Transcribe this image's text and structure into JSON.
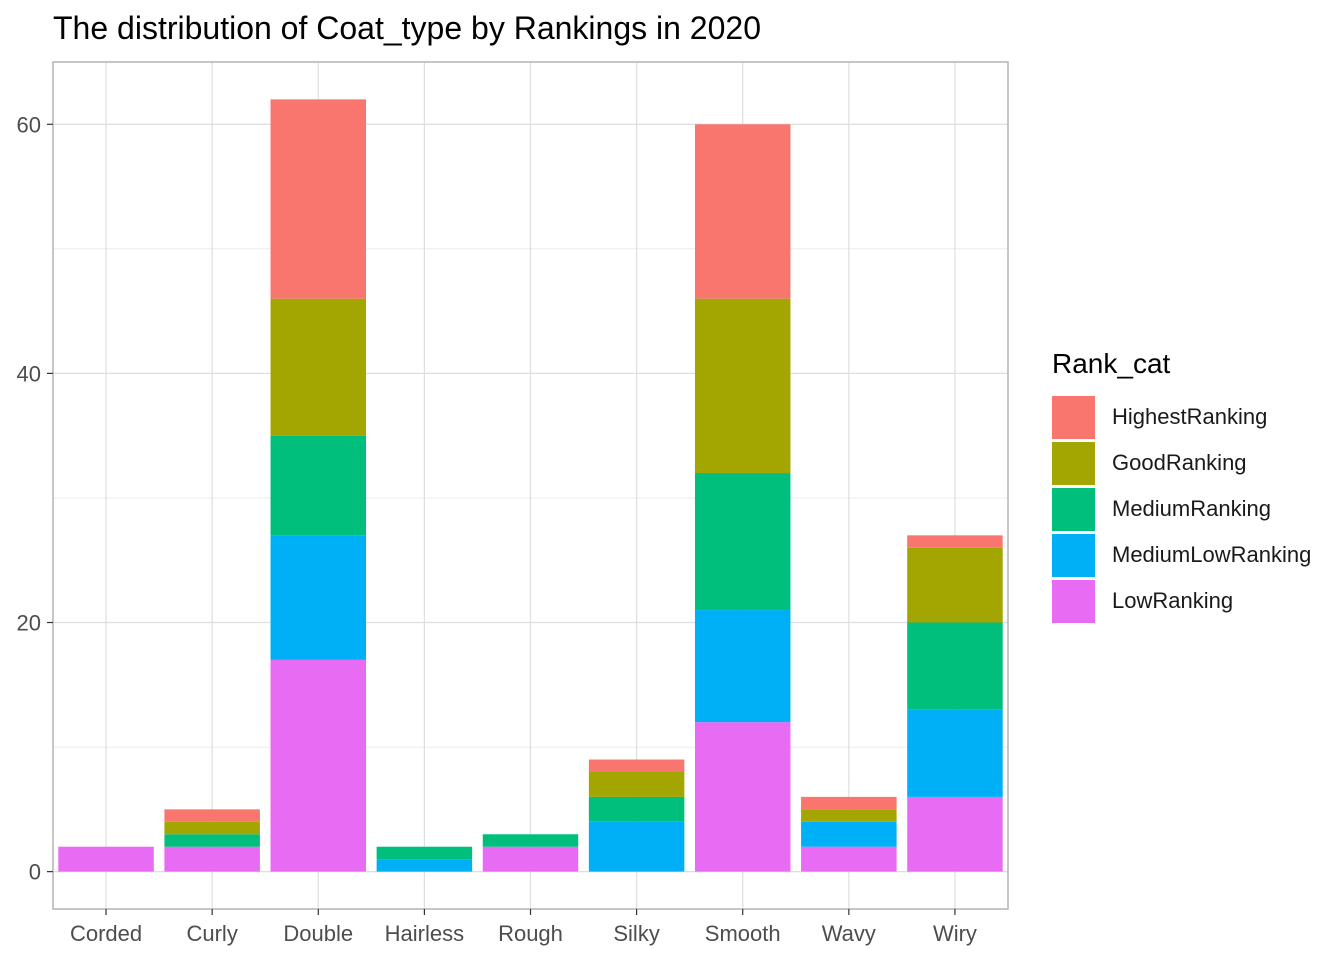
{
  "chart_data": {
    "type": "bar",
    "stacked": true,
    "title": "The distribution of Coat_type by Rankings in 2020",
    "xlabel": "",
    "ylabel": "",
    "categories": [
      "Corded",
      "Curly",
      "Double",
      "Hairless",
      "Rough",
      "Silky",
      "Smooth",
      "Wavy",
      "Wiry"
    ],
    "ylim": [
      -3,
      65
    ],
    "yticks": [
      0,
      20,
      40,
      60
    ],
    "grid": true,
    "legend": {
      "title": "Rank_cat",
      "position": "right"
    },
    "series": [
      {
        "name": "LowRanking",
        "color": "#E76BF3",
        "values": [
          2,
          2,
          17,
          0,
          2,
          0,
          12,
          2,
          6
        ]
      },
      {
        "name": "MediumLowRanking",
        "color": "#00B0F6",
        "values": [
          0,
          0,
          10,
          1,
          0,
          4,
          9,
          2,
          7
        ]
      },
      {
        "name": "MediumRanking",
        "color": "#00BF7D",
        "values": [
          0,
          1,
          8,
          1,
          1,
          2,
          11,
          0,
          7
        ]
      },
      {
        "name": "GoodRanking",
        "color": "#A3A500",
        "values": [
          0,
          1,
          11,
          0,
          0,
          2,
          14,
          1,
          6
        ]
      },
      {
        "name": "HighestRanking",
        "color": "#F8766D",
        "values": [
          0,
          1,
          16,
          0,
          0,
          1,
          14,
          1,
          1
        ]
      }
    ],
    "legend_order": [
      "HighestRanking",
      "GoodRanking",
      "MediumRanking",
      "MediumLowRanking",
      "LowRanking"
    ]
  }
}
